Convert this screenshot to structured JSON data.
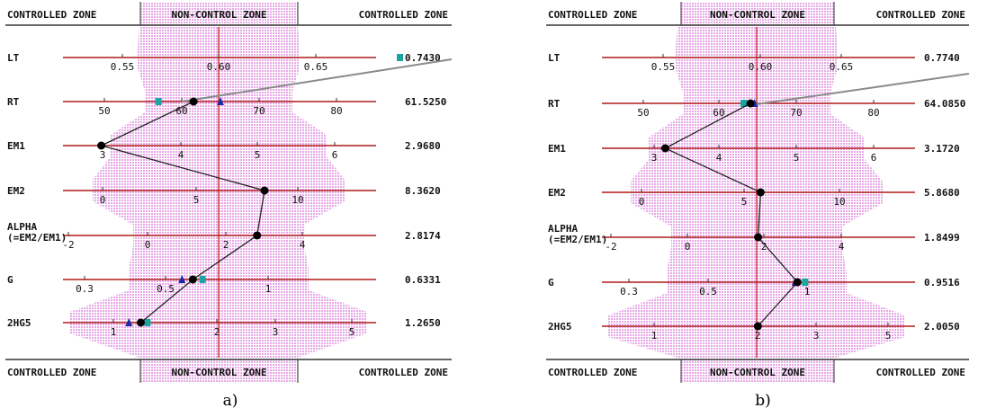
{
  "zone_labels": {
    "left": "CONTROLLED ZONE",
    "middle": "NON-CONTROL ZONE",
    "right": "CONTROLLED ZONE"
  },
  "colors": {
    "axis_line": "#b01c1c",
    "center_line": "#c01818",
    "band_fill": "#e6a8e6",
    "point": "#000000",
    "triangle_marker": "#1c2aa8",
    "square_marker": "#1aa6a0",
    "trend_line": "#8a8a8a"
  },
  "captions": [
    "a)",
    "b)"
  ],
  "chart_data": [
    {
      "type": "nomogram",
      "caption": "a)",
      "axes": [
        {
          "name": "LT",
          "value_label": "0.7430",
          "ticks": [
            {
              "label": "0.55",
              "v": 0.55
            },
            {
              "label": "0.60",
              "v": 0.6
            },
            {
              "label": "0.65",
              "v": 0.65
            }
          ],
          "point": null,
          "triangle": null,
          "square": 0.743
        },
        {
          "name": "RT",
          "value_label": "61.5250",
          "ticks": [
            {
              "label": "50",
              "v": 50
            },
            {
              "label": "60",
              "v": 60
            },
            {
              "label": "70",
              "v": 70
            },
            {
              "label": "80",
              "v": 80
            }
          ],
          "point": 61.525,
          "triangle": 65,
          "square": 57
        },
        {
          "name": "EM1",
          "value_label": "2.9680",
          "ticks": [
            {
              "label": "3",
              "v": 3
            },
            {
              "label": "4",
              "v": 4
            },
            {
              "label": "5",
              "v": 5
            },
            {
              "label": "6",
              "v": 6
            }
          ],
          "point": 2.968,
          "triangle": null,
          "square": null
        },
        {
          "name": "EM2",
          "value_label": "8.3620",
          "ticks": [
            {
              "label": "0",
              "v": 0
            },
            {
              "label": "5",
              "v": 5
            },
            {
              "label": "10",
              "v": 10
            }
          ],
          "point": 8.362,
          "triangle": null,
          "square": null
        },
        {
          "name": "ALPHA",
          "name_line2": "(=EM2/EM1)",
          "value_label": "2.8174",
          "ticks": [
            {
              "label": "-2",
              "v": -2
            },
            {
              "label": "0",
              "v": 0
            },
            {
              "label": "2",
              "v": 2
            },
            {
              "label": "4",
              "v": 4
            }
          ],
          "point": 2.8174,
          "triangle": null,
          "square": null
        },
        {
          "name": "G",
          "value_label": "0.6331",
          "ticks": [
            {
              "label": "0.3",
              "v": 0.3
            },
            {
              "label": "0.5",
              "v": 0.5
            },
            {
              "label": "1",
              "v": 1
            }
          ],
          "point": 0.6331,
          "triangle": 0.58,
          "square": 0.68
        },
        {
          "name": "2HG5",
          "value_label": "1.2650",
          "ticks": [
            {
              "label": "1",
              "v": 1
            },
            {
              "label": "2",
              "v": 2
            },
            {
              "label": "3",
              "v": 3
            },
            {
              "label": "5",
              "v": 5
            }
          ],
          "point": 1.265,
          "triangle": 1.15,
          "square": 1.33
        }
      ]
    },
    {
      "type": "nomogram",
      "caption": "b)",
      "axes": [
        {
          "name": "LT",
          "value_label": "0.7740",
          "ticks": [
            {
              "label": "0.55",
              "v": 0.55
            },
            {
              "label": "0.60",
              "v": 0.6
            },
            {
              "label": "0.65",
              "v": 0.65
            }
          ],
          "point": null,
          "triangle": null,
          "square": null
        },
        {
          "name": "RT",
          "value_label": "64.0850",
          "ticks": [
            {
              "label": "50",
              "v": 50
            },
            {
              "label": "60",
              "v": 60
            },
            {
              "label": "70",
              "v": 70
            },
            {
              "label": "80",
              "v": 80
            }
          ],
          "point": 64.085,
          "triangle": 64.6,
          "square": 63.2
        },
        {
          "name": "EM1",
          "value_label": "3.1720",
          "ticks": [
            {
              "label": "3",
              "v": 3
            },
            {
              "label": "4",
              "v": 4
            },
            {
              "label": "5",
              "v": 5
            },
            {
              "label": "6",
              "v": 6
            }
          ],
          "point": 3.172,
          "triangle": null,
          "square": null
        },
        {
          "name": "EM2",
          "value_label": "5.8680",
          "ticks": [
            {
              "label": "0",
              "v": 0
            },
            {
              "label": "5",
              "v": 5
            },
            {
              "label": "10",
              "v": 10
            }
          ],
          "point": 5.868,
          "triangle": null,
          "square": null
        },
        {
          "name": "ALPHA",
          "name_line2": "(=EM2/EM1)",
          "value_label": "1.8499",
          "ticks": [
            {
              "label": "-2",
              "v": -2
            },
            {
              "label": "0",
              "v": 0
            },
            {
              "label": "2",
              "v": 2
            },
            {
              "label": "4",
              "v": 4
            }
          ],
          "point": 1.8499,
          "triangle": null,
          "square": null
        },
        {
          "name": "G",
          "value_label": "0.9516",
          "ticks": [
            {
              "label": "0.3",
              "v": 0.3
            },
            {
              "label": "0.5",
              "v": 0.5
            },
            {
              "label": "1",
              "v": 1
            }
          ],
          "point": 0.9516,
          "triangle": 0.94,
          "square": 0.99
        },
        {
          "name": "2HG5",
          "value_label": "2.0050",
          "ticks": [
            {
              "label": "1",
              "v": 1
            },
            {
              "label": "2",
              "v": 2
            },
            {
              "label": "3",
              "v": 3
            },
            {
              "label": "5",
              "v": 5
            }
          ],
          "point": 2.005,
          "triangle": null,
          "square": null
        }
      ]
    }
  ]
}
